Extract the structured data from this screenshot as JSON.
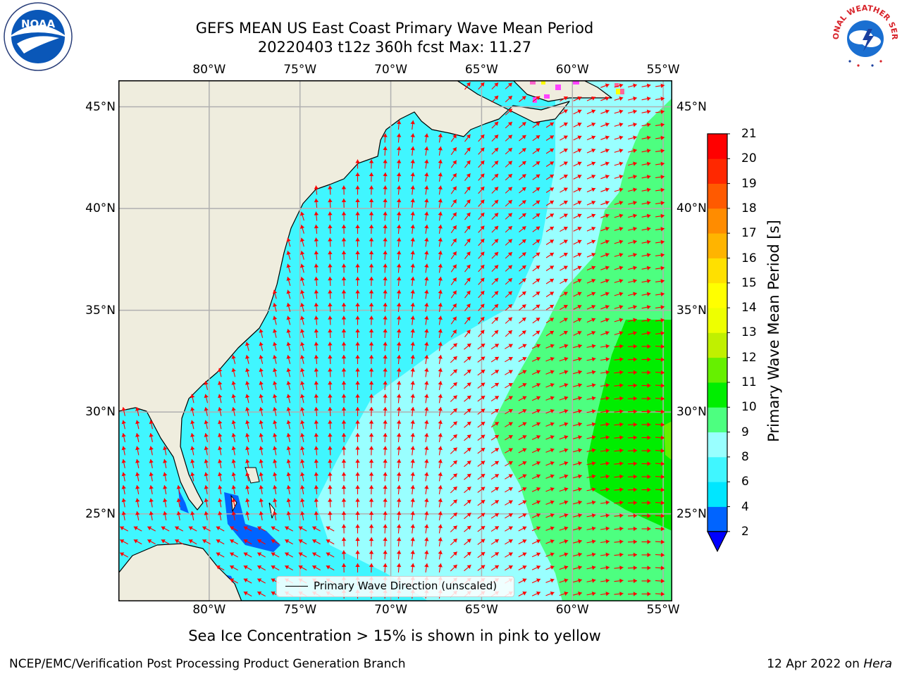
{
  "title": {
    "line1": "GEFS MEAN US East Coast Primary Wave Mean Period",
    "line2": "20220403 t12z 360h fcst   Max: 11.27"
  },
  "map": {
    "lon_range": [
      -85,
      -54.5
    ],
    "lat_range": [
      20.7,
      46.3
    ],
    "lon_labels": [
      "80°W",
      "75°W",
      "70°W",
      "65°W",
      "60°W",
      "55°W"
    ],
    "lon_values": [
      -80,
      -75,
      -70,
      -65,
      -60,
      -55
    ],
    "lat_labels": [
      "25°N",
      "30°N",
      "35°N",
      "40°N",
      "45°N"
    ],
    "lat_values": [
      25,
      30,
      35,
      40,
      45
    ],
    "arrow_color": "#ff0000",
    "land_color": "#efedde",
    "gridlines": true
  },
  "colorbar": {
    "label": "Primary Wave Mean Period [s]",
    "ticks": [
      "2",
      "4",
      "6",
      "8",
      "9",
      "10",
      "11",
      "12",
      "13",
      "14",
      "15",
      "16",
      "17",
      "18",
      "19",
      "20",
      "21"
    ],
    "colors": [
      "#0064ff",
      "#00e6ff",
      "#40f6ff",
      "#99ffff",
      "#4dff80",
      "#00ee00",
      "#66f000",
      "#c0f000",
      "#eeff00",
      "#ffff00",
      "#ffe000",
      "#ffb400",
      "#ff8c00",
      "#ff5a00",
      "#ff2800",
      "#ff0000"
    ],
    "extend_color": "#0000ff"
  },
  "legend": {
    "label": "Primary Wave Direction (unscaled)"
  },
  "note": "Sea Ice Concentration > 15% is shown in pink to yellow",
  "footer": {
    "left": "NCEP/EMC/Verification Post Processing Product Generation Branch",
    "date": "12 Apr 2022 on ",
    "machine": "Hera"
  },
  "logos": {
    "left": "NOAA",
    "right": "NATIONAL WEATHER SERVICE"
  }
}
